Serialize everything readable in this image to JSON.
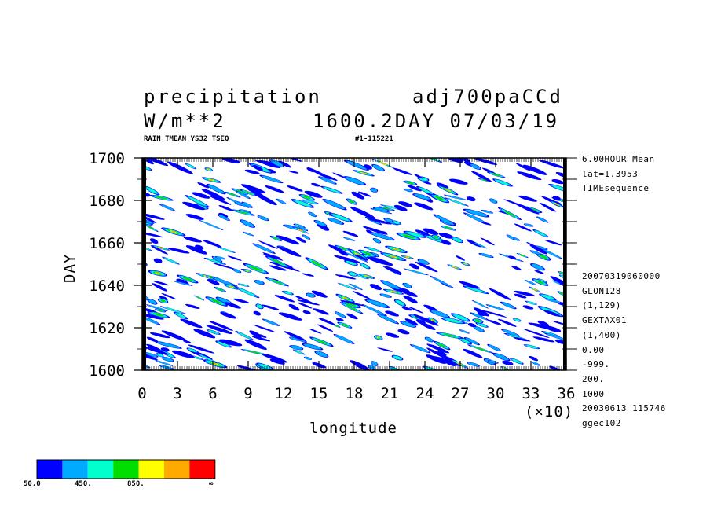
{
  "header": {
    "title_left": "precipitation",
    "title_right": "adj700paCCd",
    "units": "W/m**2",
    "time_label": "1600.2DAY 07/03/19",
    "subtitle_left": "RAIN TMEAN YS32 TSEQ",
    "subtitle_right": "#1-115221"
  },
  "side_info": {
    "top": [
      "6.00HOUR Mean",
      "lat=1.3953",
      "TIMEsequence"
    ],
    "bottom": [
      "20070319060000",
      "GLON128",
      "(1,129)",
      "GEXTAX01",
      "(1,400)",
      "0.00",
      "-999.",
      "200.",
      "1000",
      "20030613 115746",
      "ggec102"
    ]
  },
  "colorbar": {
    "colors": [
      "#0000ff",
      "#00aaff",
      "#00ffcc",
      "#00dd00",
      "#ffff00",
      "#ffaa00",
      "#ff0000"
    ],
    "labels": [
      "50.0",
      "450.",
      "850.",
      "∞"
    ]
  },
  "chart_data": {
    "type": "heatmap",
    "title": "precipitation",
    "xlabel": "longitude",
    "ylabel": "DAY",
    "x_multiplier": "(×10)",
    "xlim": [
      0,
      36
    ],
    "ylim": [
      1600,
      1700
    ],
    "x_ticks": [
      "0",
      "3",
      "6",
      "9",
      "12",
      "15",
      "18",
      "21",
      "24",
      "27",
      "30",
      "33",
      "36"
    ],
    "y_ticks": [
      "1600",
      "1620",
      "1640",
      "1660",
      "1680",
      "1700"
    ],
    "color_levels": [
      50,
      250,
      450,
      650,
      850,
      1050,
      1250
    ],
    "pattern": "scattered westward-propagating precipitation streaks over the full domain"
  }
}
